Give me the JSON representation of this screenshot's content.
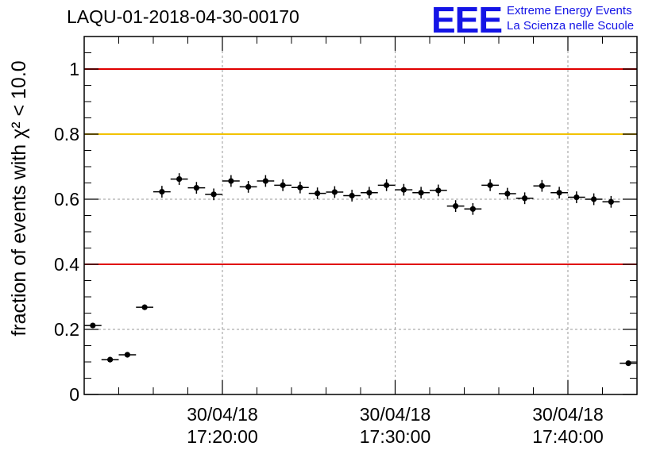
{
  "header": {
    "title": "LAQU-01-2018-04-30-00170",
    "logo": "EEE",
    "logo_line1": "Extreme Energy Events",
    "logo_line2": "La Scienza nelle Scuole"
  },
  "chart_data": {
    "type": "scatter",
    "title": "LAQU-01-2018-04-30-00170",
    "ylabel": "fraction of events with χ² < 10.0",
    "xlabel": "",
    "x_unit": "minutes",
    "xlim": [
      "17:12:00",
      "17:44:00"
    ],
    "ylim": [
      0,
      1.1
    ],
    "yticks": [
      0,
      0.2,
      0.4,
      0.6,
      0.8,
      1
    ],
    "ytick_labels": [
      "0",
      "0.2",
      "0.4",
      "0.6",
      "0.8",
      "1"
    ],
    "xticks": [
      {
        "x": "17:20:00",
        "date": "30/04/18",
        "time": "17:20:00"
      },
      {
        "x": "17:30:00",
        "date": "30/04/18",
        "time": "17:30:00"
      },
      {
        "x": "17:40:00",
        "date": "30/04/18",
        "time": "17:40:00"
      }
    ],
    "grid": true,
    "bin_width_minutes": 1,
    "reference_lines": [
      {
        "y": 1.0,
        "color": "#e00000"
      },
      {
        "y": 0.8,
        "color": "#f2c200"
      },
      {
        "y": 0.4,
        "color": "#e00000"
      }
    ],
    "points": [
      {
        "x": "17:12:30",
        "y": 0.212,
        "err": 0.006
      },
      {
        "x": "17:13:30",
        "y": 0.107,
        "err": 0.005
      },
      {
        "x": "17:14:30",
        "y": 0.122,
        "err": 0.005
      },
      {
        "x": "17:15:30",
        "y": 0.268,
        "err": 0.008
      },
      {
        "x": "17:16:30",
        "y": 0.623,
        "err": 0.018
      },
      {
        "x": "17:17:30",
        "y": 0.662,
        "err": 0.018
      },
      {
        "x": "17:18:30",
        "y": 0.635,
        "err": 0.018
      },
      {
        "x": "17:19:30",
        "y": 0.615,
        "err": 0.018
      },
      {
        "x": "17:20:30",
        "y": 0.656,
        "err": 0.018
      },
      {
        "x": "17:21:30",
        "y": 0.638,
        "err": 0.018
      },
      {
        "x": "17:22:30",
        "y": 0.656,
        "err": 0.018
      },
      {
        "x": "17:23:30",
        "y": 0.643,
        "err": 0.018
      },
      {
        "x": "17:24:30",
        "y": 0.636,
        "err": 0.018
      },
      {
        "x": "17:25:30",
        "y": 0.618,
        "err": 0.018
      },
      {
        "x": "17:26:30",
        "y": 0.622,
        "err": 0.018
      },
      {
        "x": "17:27:30",
        "y": 0.611,
        "err": 0.018
      },
      {
        "x": "17:28:30",
        "y": 0.62,
        "err": 0.018
      },
      {
        "x": "17:29:30",
        "y": 0.643,
        "err": 0.018
      },
      {
        "x": "17:30:30",
        "y": 0.629,
        "err": 0.018
      },
      {
        "x": "17:31:30",
        "y": 0.62,
        "err": 0.018
      },
      {
        "x": "17:32:30",
        "y": 0.627,
        "err": 0.018
      },
      {
        "x": "17:33:30",
        "y": 0.579,
        "err": 0.018
      },
      {
        "x": "17:34:30",
        "y": 0.57,
        "err": 0.018
      },
      {
        "x": "17:35:30",
        "y": 0.643,
        "err": 0.018
      },
      {
        "x": "17:36:30",
        "y": 0.617,
        "err": 0.018
      },
      {
        "x": "17:37:30",
        "y": 0.603,
        "err": 0.018
      },
      {
        "x": "17:38:30",
        "y": 0.641,
        "err": 0.018
      },
      {
        "x": "17:39:30",
        "y": 0.62,
        "err": 0.018
      },
      {
        "x": "17:40:30",
        "y": 0.606,
        "err": 0.018
      },
      {
        "x": "17:41:30",
        "y": 0.6,
        "err": 0.018
      },
      {
        "x": "17:42:30",
        "y": 0.592,
        "err": 0.018
      },
      {
        "x": "17:43:30",
        "y": 0.096,
        "err": 0.005
      }
    ]
  }
}
